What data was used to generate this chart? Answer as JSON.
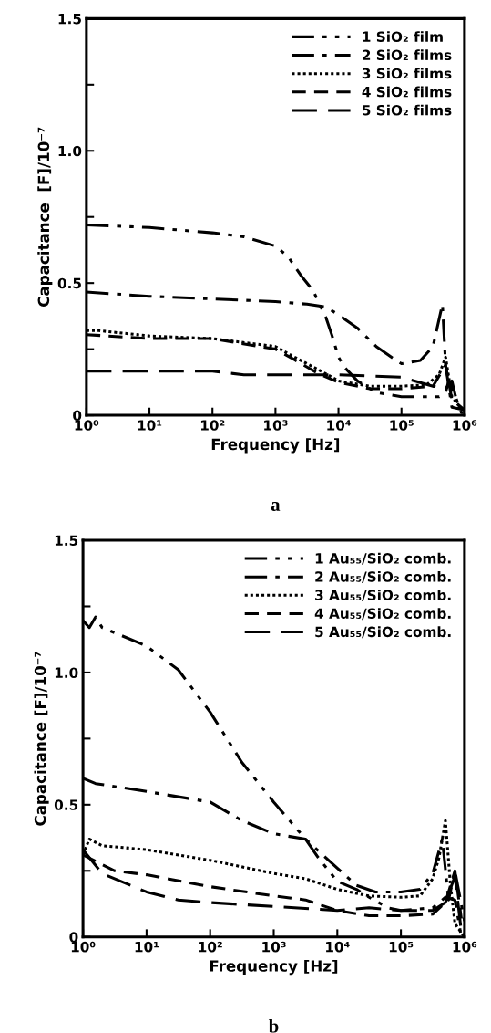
{
  "chart_data": [
    {
      "type": "line",
      "title": "a",
      "xlabel": "Frequency [Hz]",
      "ylabel": "Capacitance  [F]/10⁻⁷",
      "log": "x",
      "xlim": [
        1,
        1000000
      ],
      "ylim": [
        0,
        1.5
      ],
      "xticks": [
        {
          "value": 1,
          "label": "10⁰"
        },
        {
          "value": 10,
          "label": "10¹"
        },
        {
          "value": 100,
          "label": "10²"
        },
        {
          "value": 1000,
          "label": "10³"
        },
        {
          "value": 10000,
          "label": "10⁴"
        },
        {
          "value": 100000,
          "label": "10⁵"
        },
        {
          "value": 1000000,
          "label": "10⁶"
        }
      ],
      "yticks": [
        0,
        {
          "value": 0.25,
          "label": null
        },
        0.5,
        {
          "value": 0.75,
          "label": null
        },
        {
          "value": 1.0,
          "label": "1.0"
        },
        {
          "value": 1.25,
          "label": null
        },
        1.5
      ],
      "legend": "top right",
      "grid": false,
      "marker": "none",
      "series": [
        {
          "name": "1 SiO₂ film",
          "color": "#000000",
          "line_style": "dashdotdot",
          "x": [
            1,
            10,
            100,
            316,
            1000,
            1585,
            2512,
            3981,
            6310,
            7943,
            10000,
            12589,
            19953,
            39811,
            100000,
            398107,
            501187,
            562341,
            707946,
            891251,
            1000000
          ],
          "values": [
            0.72,
            0.71,
            0.69,
            0.675,
            0.64,
            0.6,
            0.53,
            0.47,
            0.37,
            0.3,
            0.22,
            0.18,
            0.13,
            0.086,
            0.07,
            0.07,
            0.086,
            0.13,
            0.075,
            0.01,
            0.01
          ]
        },
        {
          "name": "2 SiO₂ films",
          "color": "#000000",
          "line_style": "dashdot",
          "x": [
            1,
            10,
            100,
            1000,
            3162,
            6310,
            10000,
            19953,
            39811,
            79433,
            100000,
            199526,
            316228,
            446684,
            501187,
            630957,
            1000000
          ],
          "values": [
            0.466,
            0.45,
            0.44,
            0.43,
            0.42,
            0.41,
            0.38,
            0.33,
            0.26,
            0.21,
            0.195,
            0.207,
            0.26,
            0.42,
            0.19,
            0.03,
            0.02
          ]
        },
        {
          "name": "3 SiO₂ films",
          "color": "#000000",
          "line_style": "dotted",
          "x": [
            1,
            1.58,
            10,
            100,
            1000,
            2000,
            5012,
            10000,
            31623,
            100000,
            251189,
            398107,
            501187,
            630957,
            1000000
          ],
          "values": [
            0.32,
            0.32,
            0.3,
            0.29,
            0.26,
            0.22,
            0.17,
            0.13,
            0.11,
            0.11,
            0.115,
            0.155,
            0.22,
            0.07,
            0.01
          ]
        },
        {
          "name": "4 SiO₂ films",
          "color": "#000000",
          "line_style": "dashed",
          "x": [
            1,
            10,
            100,
            1000,
            2000,
            5012,
            10000,
            31623,
            100000,
            316228,
            501187,
            630957,
            1000000
          ],
          "values": [
            0.305,
            0.29,
            0.29,
            0.25,
            0.21,
            0.155,
            0.125,
            0.1,
            0.1,
            0.11,
            0.19,
            0.06,
            0.02
          ]
        },
        {
          "name": "5 SiO₂ films",
          "color": "#000000",
          "line_style": "longdash",
          "x": [
            1,
            100,
            316,
            10000,
            100000,
            316228,
            501187,
            630957,
            794328,
            1000000
          ],
          "values": [
            0.167,
            0.167,
            0.153,
            0.153,
            0.144,
            0.11,
            0.1,
            0.13,
            0.03,
            0.02
          ]
        }
      ]
    },
    {
      "type": "line",
      "title": "b",
      "xlabel": "Frequency [Hz]",
      "ylabel": "Capacitance [F]/10⁻⁷",
      "log": "x",
      "xlim": [
        1,
        1000000
      ],
      "ylim": [
        0,
        1.5
      ],
      "xticks": [
        {
          "value": 1,
          "label": "10⁰"
        },
        {
          "value": 10,
          "label": "10¹"
        },
        {
          "value": 100,
          "label": "10²"
        },
        {
          "value": 1000,
          "label": "10³"
        },
        {
          "value": 10000,
          "label": "10⁴"
        },
        {
          "value": 100000,
          "label": "10⁵"
        },
        {
          "value": 1000000,
          "label": "10⁶"
        }
      ],
      "yticks": [
        0,
        {
          "value": 0.25,
          "label": null
        },
        0.5,
        {
          "value": 0.75,
          "label": null
        },
        {
          "value": 1.0,
          "label": "1.0"
        },
        {
          "value": 1.25,
          "label": null
        },
        1.5
      ],
      "legend": "top right",
      "grid": false,
      "marker": "none",
      "series": [
        {
          "name": "1 Au₅₅/SiO₂ comb.",
          "color": "#000000",
          "line_style": "dashdotdot",
          "x": [
            1,
            1.26,
            1.58,
            2,
            10,
            31.6,
            100,
            316,
            1000,
            3162,
            5012,
            10000,
            19953,
            31623,
            63096,
            100000,
            316228,
            501187,
            707946,
            891251
          ],
          "values": [
            1.196,
            1.17,
            1.21,
            1.17,
            1.1,
            1.01,
            0.85,
            0.66,
            0.51,
            0.37,
            0.3,
            0.21,
            0.18,
            0.15,
            0.11,
            0.1,
            0.11,
            0.15,
            0.14,
            0.0
          ]
        },
        {
          "name": "2 Au₅₅/SiO₂ comb.",
          "color": "#000000",
          "line_style": "dashdot",
          "x": [
            1,
            1.58,
            10,
            100,
            316,
            1000,
            3162,
            10000,
            19953,
            39811,
            100000,
            199526,
            316228,
            446684,
            562341,
            707946,
            1000000
          ],
          "values": [
            0.6,
            0.58,
            0.55,
            0.51,
            0.44,
            0.39,
            0.37,
            0.26,
            0.195,
            0.17,
            0.17,
            0.18,
            0.24,
            0.37,
            0.14,
            0.25,
            0.06
          ]
        },
        {
          "name": "3 Au₅₅/SiO₂ comb.",
          "color": "#000000",
          "line_style": "dotted",
          "x": [
            1,
            1.26,
            2,
            10,
            100,
            1000,
            3162,
            10000,
            31623,
            100000,
            199526,
            316228,
            398107,
            501187,
            602560,
            707946,
            1000000
          ],
          "values": [
            0.31,
            0.37,
            0.345,
            0.33,
            0.29,
            0.24,
            0.22,
            0.18,
            0.155,
            0.15,
            0.155,
            0.22,
            0.3,
            0.44,
            0.195,
            0.05,
            0.0
          ]
        },
        {
          "name": "4 Au₅₅/SiO₂ comb.",
          "color": "#000000",
          "line_style": "dashed",
          "x": [
            1,
            3.16,
            10,
            100,
            1000,
            3162,
            10000,
            31623,
            100000,
            316228,
            501187,
            707946,
            891251
          ],
          "values": [
            0.31,
            0.25,
            0.235,
            0.19,
            0.155,
            0.14,
            0.1,
            0.08,
            0.08,
            0.086,
            0.13,
            0.25,
            0.07
          ]
        },
        {
          "name": "5 Au₅₅/SiO₂ comb.",
          "color": "#000000",
          "line_style": "longdash",
          "x": [
            1,
            2,
            10,
            31.6,
            100,
            1000,
            10000,
            31623,
            100000,
            316228,
            501187,
            707946,
            891251
          ],
          "values": [
            0.33,
            0.24,
            0.17,
            0.14,
            0.13,
            0.115,
            0.1,
            0.11,
            0.1,
            0.1,
            0.13,
            0.23,
            0.02
          ]
        }
      ]
    }
  ]
}
